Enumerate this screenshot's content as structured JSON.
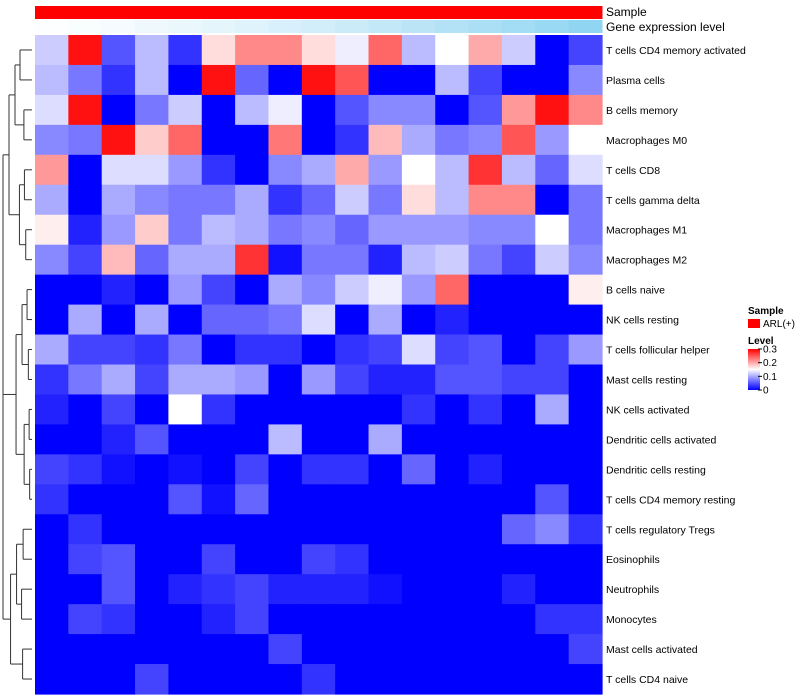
{
  "chart_data": {
    "type": "heatmap",
    "annotations": {
      "sample_label": "Sample",
      "expression_label": "Gene expression level",
      "sample_color": "#ff0000",
      "expression_low_color": "#ffffff",
      "expression_high_color": "#7ccdf0",
      "expression_values": [
        0.02,
        0.05,
        0.08,
        0.12,
        0.16,
        0.2,
        0.25,
        0.3,
        0.35,
        0.4,
        0.46,
        0.52,
        0.58,
        0.64,
        0.7,
        0.77,
        0.85
      ]
    },
    "rows": [
      "T cells CD4 memory activated",
      "Plasma cells",
      "B cells memory",
      "Macrophages M0",
      "T cells CD8",
      "T cells gamma delta",
      "Macrophages M1",
      "Macrophages M2",
      "B cells naive",
      "NK cells resting",
      "T cells follicular helper",
      "Mast cells resting",
      "NK cells activated",
      "Dendritic cells activated",
      "Dendritic cells resting",
      "T cells CD4 memory resting",
      "T cells regulatory  Tregs",
      "Eosinophils",
      "Neutrophils",
      "Monocytes",
      "Mast cells activated",
      "T cells CD4 naive"
    ],
    "values": [
      [
        0.12,
        0.29,
        0.05,
        0.11,
        0.03,
        0.17,
        0.22,
        0.22,
        0.17,
        0.14,
        0.24,
        0.11,
        0.15,
        0.2,
        0.12,
        0.0,
        0.04
      ],
      [
        0.11,
        0.07,
        0.03,
        0.11,
        0.0,
        0.29,
        0.06,
        0.0,
        0.29,
        0.25,
        0.0,
        0.0,
        0.11,
        0.04,
        0.0,
        0.0,
        0.08
      ],
      [
        0.13,
        0.29,
        0.0,
        0.07,
        0.12,
        0.0,
        0.11,
        0.14,
        0.0,
        0.05,
        0.08,
        0.08,
        0.0,
        0.05,
        0.21,
        0.29,
        0.22
      ],
      [
        0.08,
        0.07,
        0.29,
        0.18,
        0.24,
        0.0,
        0.0,
        0.23,
        0.0,
        0.03,
        0.19,
        0.1,
        0.07,
        0.08,
        0.25,
        0.09,
        0.15
      ],
      [
        0.21,
        0.0,
        0.13,
        0.13,
        0.09,
        0.03,
        0.0,
        0.08,
        0.1,
        0.2,
        0.09,
        0.15,
        0.11,
        0.27,
        0.11,
        0.06,
        0.13
      ],
      [
        0.1,
        0.0,
        0.1,
        0.08,
        0.07,
        0.07,
        0.1,
        0.03,
        0.06,
        0.12,
        0.07,
        0.17,
        0.11,
        0.22,
        0.22,
        0.0,
        0.07
      ],
      [
        0.16,
        0.02,
        0.09,
        0.18,
        0.07,
        0.11,
        0.1,
        0.07,
        0.08,
        0.06,
        0.09,
        0.09,
        0.09,
        0.08,
        0.08,
        0.15,
        0.07
      ],
      [
        0.08,
        0.04,
        0.19,
        0.06,
        0.1,
        0.1,
        0.27,
        0.01,
        0.07,
        0.07,
        0.02,
        0.11,
        0.12,
        0.07,
        0.04,
        0.12,
        0.08
      ],
      [
        0.0,
        0.0,
        0.02,
        0.0,
        0.09,
        0.04,
        0.0,
        0.1,
        0.08,
        0.12,
        0.14,
        0.09,
        0.24,
        0.0,
        0.0,
        0.0,
        0.16
      ],
      [
        0.0,
        0.1,
        0.0,
        0.1,
        0.0,
        0.06,
        0.06,
        0.07,
        0.13,
        0.0,
        0.1,
        0.0,
        0.02,
        0.0,
        0.0,
        0.0,
        0.0
      ],
      [
        0.1,
        0.04,
        0.04,
        0.03,
        0.07,
        0.0,
        0.03,
        0.03,
        0.0,
        0.03,
        0.04,
        0.13,
        0.04,
        0.05,
        0.0,
        0.04,
        0.09
      ],
      [
        0.03,
        0.07,
        0.1,
        0.04,
        0.1,
        0.1,
        0.09,
        0.0,
        0.09,
        0.04,
        0.02,
        0.02,
        0.05,
        0.05,
        0.04,
        0.04,
        0.0
      ],
      [
        0.02,
        0.0,
        0.04,
        0.0,
        0.15,
        0.03,
        0.0,
        0.0,
        0.0,
        0.0,
        0.0,
        0.03,
        0.0,
        0.03,
        0.0,
        0.1,
        0.0
      ],
      [
        0.0,
        0.0,
        0.02,
        0.05,
        0.0,
        0.0,
        0.0,
        0.11,
        0.0,
        0.0,
        0.1,
        0.0,
        0.0,
        0.0,
        0.0,
        0.0,
        0.0
      ],
      [
        0.04,
        0.03,
        0.01,
        0.0,
        0.01,
        0.0,
        0.04,
        0.0,
        0.03,
        0.03,
        0.0,
        0.06,
        0.0,
        0.02,
        0.0,
        0.0,
        0.0
      ],
      [
        0.03,
        0.0,
        0.0,
        0.0,
        0.05,
        0.01,
        0.06,
        0.0,
        0.0,
        0.0,
        0.0,
        0.0,
        0.0,
        0.0,
        0.0,
        0.05,
        0.0
      ],
      [
        0.0,
        0.03,
        0.0,
        0.0,
        0.0,
        0.0,
        0.0,
        0.0,
        0.0,
        0.0,
        0.0,
        0.0,
        0.0,
        0.0,
        0.06,
        0.08,
        0.03
      ],
      [
        0.0,
        0.04,
        0.05,
        0.0,
        0.0,
        0.04,
        0.0,
        0.0,
        0.04,
        0.03,
        0.0,
        0.0,
        0.0,
        0.0,
        0.0,
        0.0,
        0.0
      ],
      [
        0.0,
        0.0,
        0.05,
        0.0,
        0.02,
        0.03,
        0.04,
        0.02,
        0.02,
        0.02,
        0.01,
        0.0,
        0.0,
        0.0,
        0.02,
        0.0,
        0.0
      ],
      [
        0.0,
        0.04,
        0.03,
        0.0,
        0.0,
        0.02,
        0.04,
        0.0,
        0.0,
        0.0,
        0.0,
        0.0,
        0.0,
        0.0,
        0.0,
        0.03,
        0.03
      ],
      [
        0.0,
        0.0,
        0.0,
        0.0,
        0.0,
        0.0,
        0.0,
        0.04,
        0.0,
        0.0,
        0.0,
        0.0,
        0.0,
        0.0,
        0.0,
        0.0,
        0.04
      ],
      [
        0.0,
        0.0,
        0.0,
        0.04,
        0.0,
        0.0,
        0.0,
        0.0,
        0.03,
        0.0,
        0.0,
        0.0,
        0.0,
        0.0,
        0.0,
        0.0,
        0.0
      ]
    ],
    "color_scale": {
      "low": "#0000ff",
      "mid": "#ffffff",
      "high": "#ff0000",
      "min": 0,
      "max": 0.3
    },
    "dendrogram_merges": [
      [
        0,
        1,
        0.46
      ],
      [
        6,
        7,
        0.31
      ],
      [
        9,
        10,
        0.29
      ],
      [
        11,
        12,
        0.24
      ],
      [
        13,
        14,
        0.19
      ],
      [
        15,
        16,
        0.14
      ],
      [
        17,
        18,
        0.11
      ],
      [
        19,
        20,
        0.09
      ],
      [
        4,
        5,
        0.34
      ],
      [
        2,
        3,
        0.4
      ],
      [
        8,
        9,
        0.36
      ],
      [
        20,
        21,
        0.07
      ],
      [
        16,
        17,
        0.12
      ]
    ],
    "legend": {
      "sample_title": "Sample",
      "sample_entry": "ARL(+)",
      "level_title": "Level",
      "ticks": [
        "0.3",
        "0.2",
        "0.1",
        "0"
      ],
      "tick_values": [
        0.3,
        0.2,
        0.1,
        0
      ]
    }
  }
}
